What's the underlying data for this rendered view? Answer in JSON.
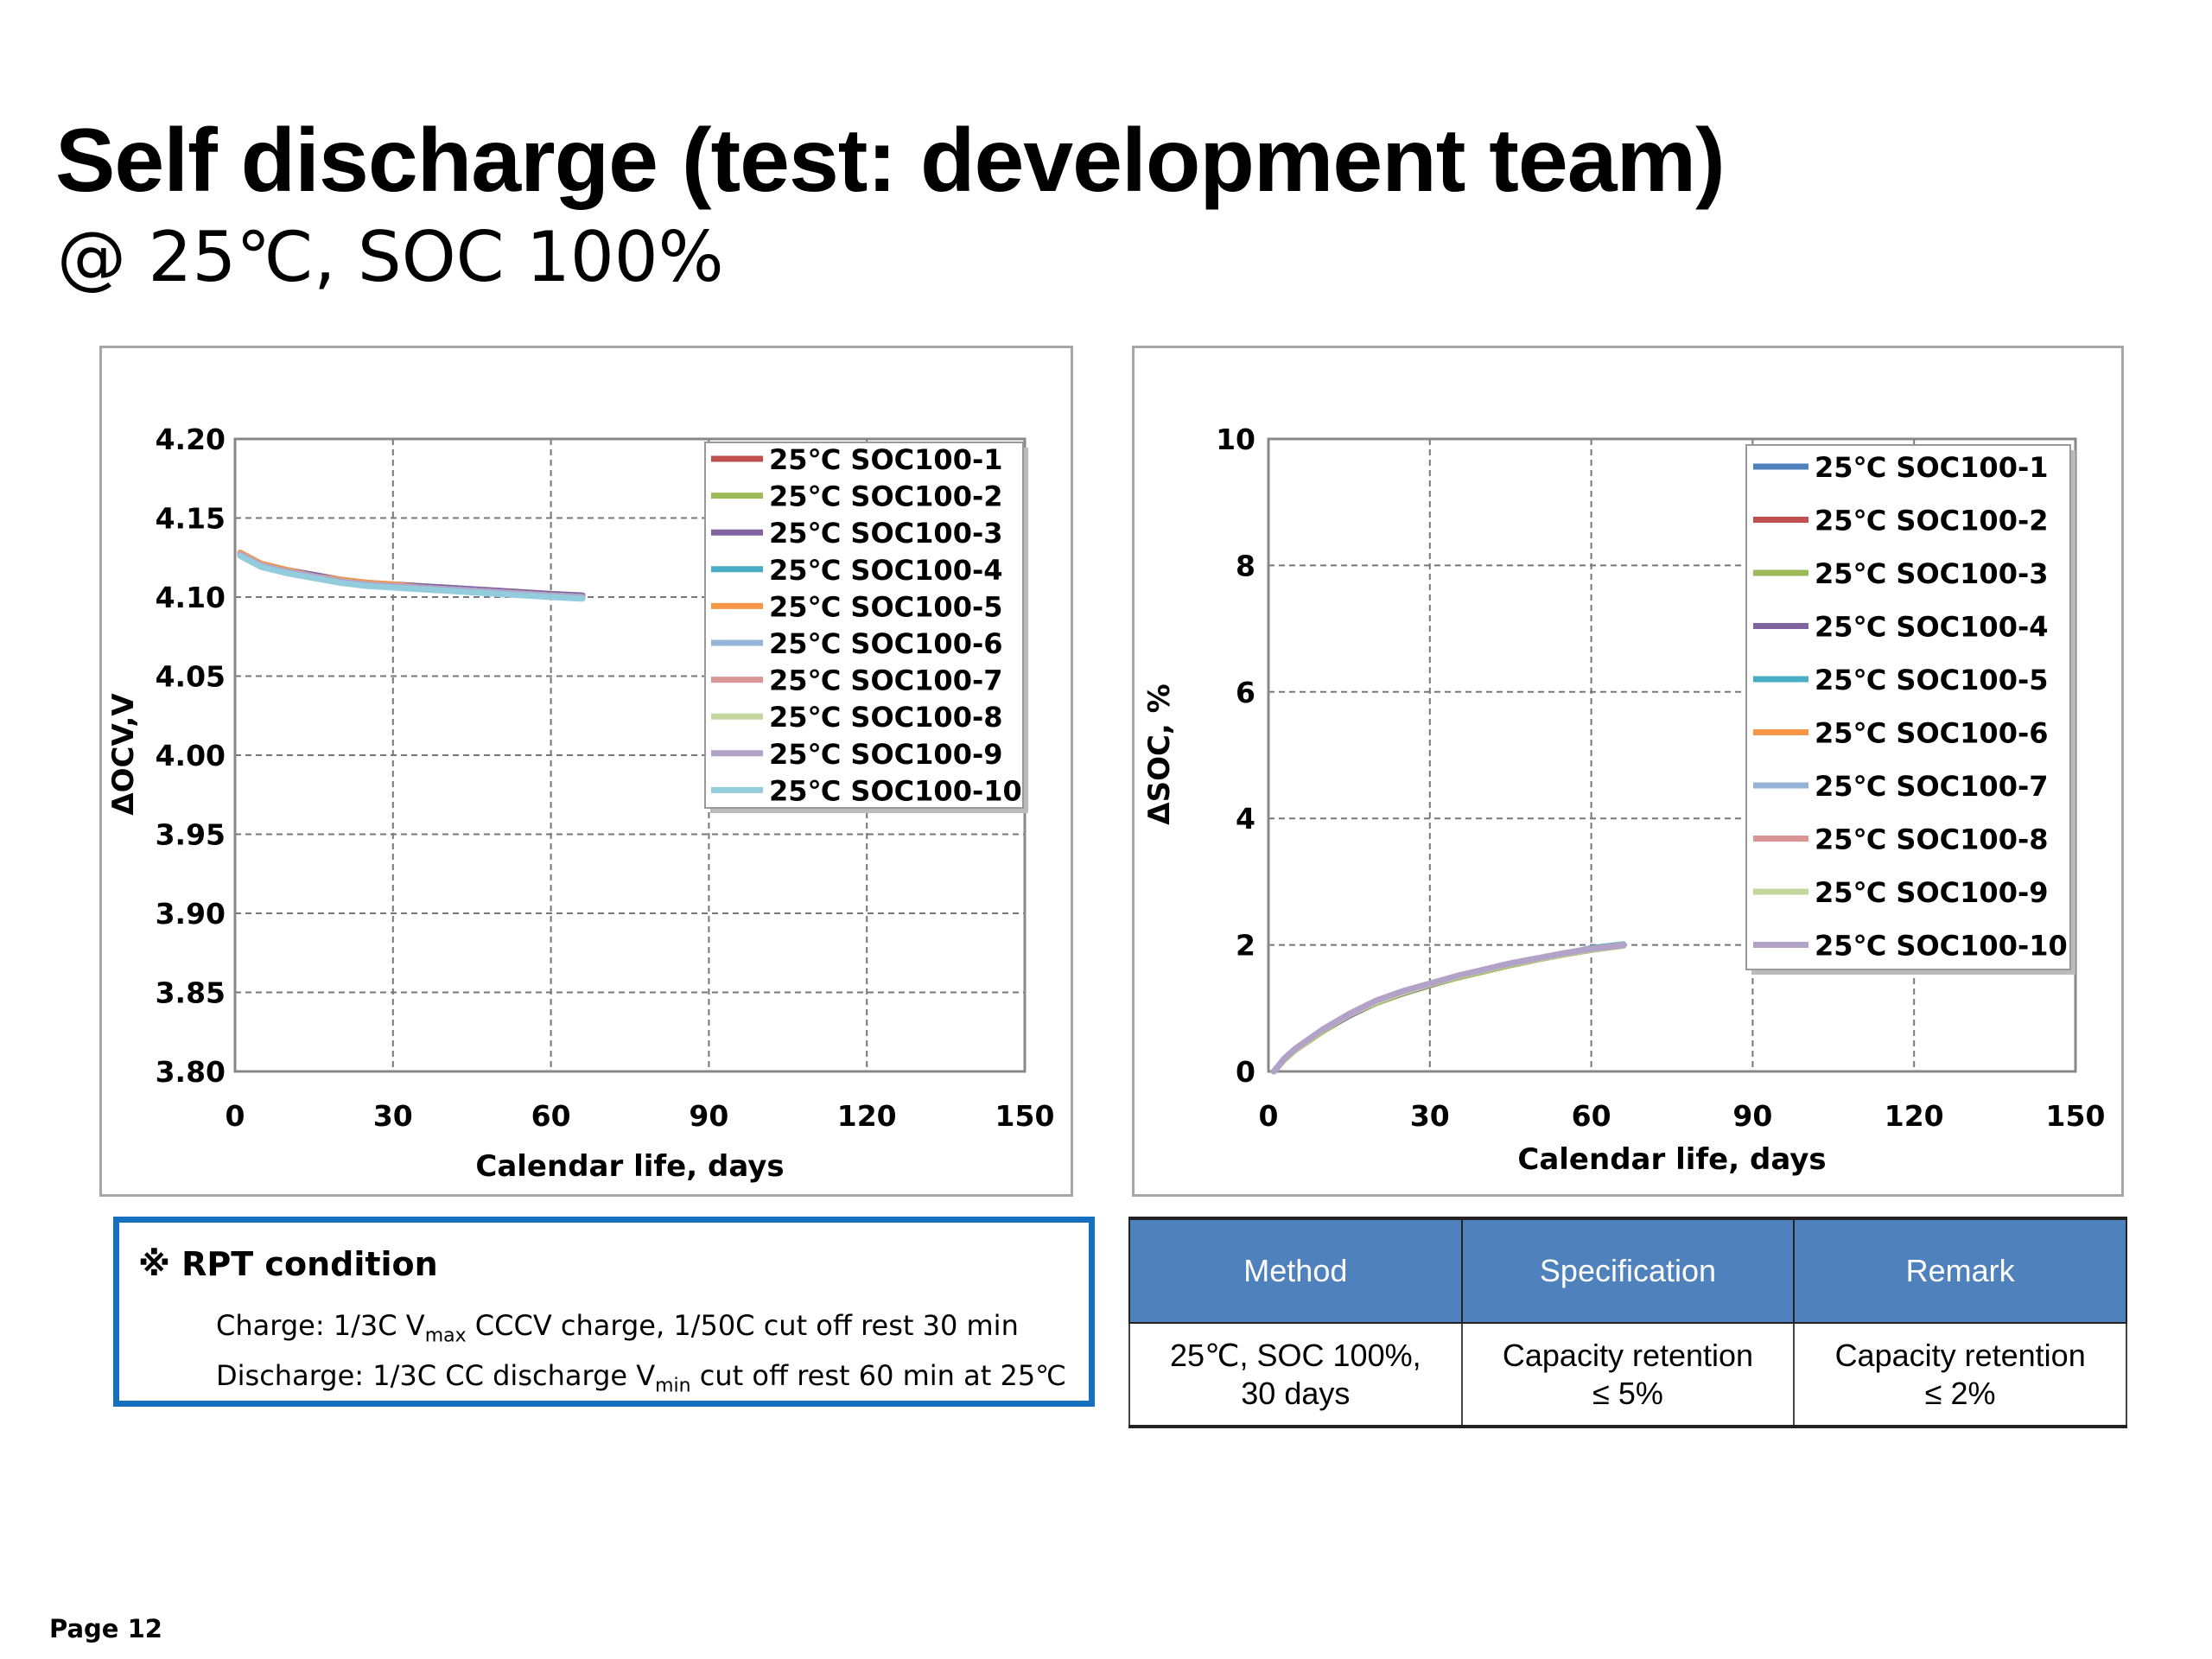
{
  "header": {
    "title": "Self discharge (test: development team)",
    "subtitle": "@ 25℃, SOC 100%"
  },
  "chart_data": [
    {
      "type": "line",
      "xlabel": "Calendar life, days",
      "ylabel": "ΔOCV,V",
      "xlim": [
        0,
        150
      ],
      "ylim": [
        3.8,
        4.2
      ],
      "xticks": [
        "0",
        "30",
        "60",
        "90",
        "120",
        "150"
      ],
      "yticks": [
        "3.80",
        "3.85",
        "3.90",
        "3.95",
        "4.00",
        "4.05",
        "4.10",
        "4.15",
        "4.20"
      ],
      "grid": true,
      "legend_placement": "top-right",
      "x": [
        1,
        5,
        10,
        15,
        20,
        25,
        30,
        35,
        40,
        45,
        50,
        55,
        60,
        66
      ],
      "series": [
        {
          "name": "25℃ SOC100-1",
          "color": "#c0504d",
          "values": [
            4.127,
            4.12,
            4.116,
            4.113,
            4.11,
            4.109,
            4.107,
            4.106,
            4.105,
            4.104,
            4.103,
            4.102,
            4.101,
            4.1
          ]
        },
        {
          "name": "25℃ SOC100-2",
          "color": "#9bbb59",
          "values": [
            4.127,
            4.12,
            4.116,
            4.113,
            4.11,
            4.108,
            4.107,
            4.106,
            4.105,
            4.104,
            4.103,
            4.102,
            4.101,
            4.1
          ]
        },
        {
          "name": "25℃ SOC100-3",
          "color": "#8064a2",
          "values": [
            4.128,
            4.121,
            4.117,
            4.114,
            4.111,
            4.109,
            4.108,
            4.107,
            4.106,
            4.105,
            4.104,
            4.103,
            4.102,
            4.101
          ]
        },
        {
          "name": "25℃ SOC100-4",
          "color": "#4bacc6",
          "values": [
            4.127,
            4.12,
            4.116,
            4.113,
            4.11,
            4.108,
            4.107,
            4.106,
            4.105,
            4.104,
            4.103,
            4.102,
            4.101,
            4.1
          ]
        },
        {
          "name": "25℃ SOC100-5",
          "color": "#f79646",
          "values": [
            4.128,
            4.121,
            4.117,
            4.113,
            4.111,
            4.109,
            4.108,
            4.106,
            4.105,
            4.104,
            4.103,
            4.102,
            4.101,
            4.1
          ]
        },
        {
          "name": "25℃ SOC100-6",
          "color": "#95b3d7",
          "values": [
            4.127,
            4.12,
            4.116,
            4.113,
            4.11,
            4.108,
            4.107,
            4.106,
            4.105,
            4.104,
            4.103,
            4.102,
            4.101,
            4.1
          ]
        },
        {
          "name": "25℃ SOC100-7",
          "color": "#d99694",
          "values": [
            4.127,
            4.12,
            4.116,
            4.113,
            4.11,
            4.108,
            4.107,
            4.106,
            4.105,
            4.104,
            4.103,
            4.102,
            4.101,
            4.1
          ]
        },
        {
          "name": "25℃ SOC100-8",
          "color": "#c3d69b",
          "values": [
            4.127,
            4.12,
            4.116,
            4.113,
            4.11,
            4.108,
            4.107,
            4.106,
            4.105,
            4.104,
            4.103,
            4.102,
            4.101,
            4.1
          ]
        },
        {
          "name": "25℃ SOC100-9",
          "color": "#b3a2c7",
          "values": [
            4.127,
            4.12,
            4.116,
            4.113,
            4.11,
            4.108,
            4.107,
            4.106,
            4.105,
            4.104,
            4.103,
            4.102,
            4.101,
            4.1
          ]
        },
        {
          "name": "25℃ SOC100-10",
          "color": "#93cddd",
          "values": [
            4.126,
            4.119,
            4.115,
            4.112,
            4.109,
            4.107,
            4.106,
            4.105,
            4.104,
            4.103,
            4.102,
            4.101,
            4.1,
            4.099
          ]
        }
      ]
    },
    {
      "type": "line",
      "xlabel": "Calendar life, days",
      "ylabel": "ΔSOC, %",
      "xlim": [
        0,
        150
      ],
      "ylim": [
        0,
        10
      ],
      "xticks": [
        "0",
        "30",
        "60",
        "90",
        "120",
        "150"
      ],
      "yticks": [
        "0",
        "2",
        "4",
        "6",
        "8",
        "10"
      ],
      "grid": true,
      "legend_placement": "top-right",
      "x": [
        1,
        3,
        5,
        10,
        15,
        20,
        25,
        30,
        35,
        40,
        45,
        50,
        55,
        60,
        66
      ],
      "series": [
        {
          "name": "25℃ SOC100-1",
          "color": "#4f81bd",
          "values": [
            0,
            0.2,
            0.35,
            0.65,
            0.9,
            1.1,
            1.25,
            1.38,
            1.5,
            1.6,
            1.7,
            1.78,
            1.86,
            1.93,
            2.0
          ]
        },
        {
          "name": "25℃ SOC100-2",
          "color": "#c0504d",
          "values": [
            0,
            0.2,
            0.35,
            0.65,
            0.9,
            1.1,
            1.25,
            1.38,
            1.5,
            1.6,
            1.7,
            1.78,
            1.86,
            1.93,
            2.0
          ]
        },
        {
          "name": "25℃ SOC100-3",
          "color": "#9bbb59",
          "values": [
            0,
            0.19,
            0.34,
            0.63,
            0.88,
            1.08,
            1.23,
            1.36,
            1.48,
            1.58,
            1.68,
            1.77,
            1.85,
            1.92,
            1.99
          ]
        },
        {
          "name": "25℃ SOC100-4",
          "color": "#8064a2",
          "values": [
            0,
            0.2,
            0.35,
            0.65,
            0.88,
            1.1,
            1.24,
            1.37,
            1.5,
            1.6,
            1.7,
            1.78,
            1.86,
            1.93,
            2.0
          ]
        },
        {
          "name": "25℃ SOC100-5",
          "color": "#4bacc6",
          "values": [
            0,
            0.2,
            0.35,
            0.65,
            0.9,
            1.1,
            1.25,
            1.38,
            1.5,
            1.6,
            1.7,
            1.78,
            1.86,
            1.95,
            2.01
          ]
        },
        {
          "name": "25℃ SOC100-6",
          "color": "#f79646",
          "values": [
            0,
            0.2,
            0.35,
            0.65,
            0.9,
            1.1,
            1.25,
            1.38,
            1.5,
            1.6,
            1.7,
            1.78,
            1.86,
            1.93,
            2.0
          ]
        },
        {
          "name": "25℃ SOC100-7",
          "color": "#95b3d7",
          "values": [
            0,
            0.2,
            0.35,
            0.65,
            0.9,
            1.1,
            1.25,
            1.38,
            1.5,
            1.6,
            1.7,
            1.78,
            1.86,
            1.93,
            2.0
          ]
        },
        {
          "name": "25℃ SOC100-8",
          "color": "#d99694",
          "values": [
            0,
            0.2,
            0.35,
            0.65,
            0.9,
            1.1,
            1.25,
            1.38,
            1.5,
            1.6,
            1.7,
            1.78,
            1.86,
            1.93,
            2.0
          ]
        },
        {
          "name": "25℃ SOC100-9",
          "color": "#c3d69b",
          "values": [
            0,
            0.2,
            0.35,
            0.65,
            0.9,
            1.1,
            1.25,
            1.38,
            1.5,
            1.6,
            1.7,
            1.78,
            1.86,
            1.93,
            2.0
          ]
        },
        {
          "name": "25℃ SOC100-10",
          "color": "#b3a2c7",
          "values": [
            0,
            0.21,
            0.36,
            0.66,
            0.91,
            1.12,
            1.27,
            1.39,
            1.51,
            1.61,
            1.71,
            1.79,
            1.87,
            1.94,
            2.0
          ]
        }
      ]
    }
  ],
  "rpt": {
    "heading": "※ RPT condition",
    "charge_pre": "Charge: 1/3C V",
    "charge_sub": "max",
    "charge_post": " CCCV charge, 1/50C cut off rest 30 min",
    "discharge_pre": "Discharge: 1/3C CC discharge V",
    "discharge_sub": "min",
    "discharge_post": " cut off  rest 60 min at 25℃"
  },
  "spec_table": {
    "headers": [
      "Method",
      "Specification",
      "Remark"
    ],
    "row": [
      [
        "25℃, SOC 100%,",
        "30 days"
      ],
      [
        "Capacity retention",
        "≤ 5%"
      ],
      [
        "Capacity retention",
        "≤ 2%"
      ]
    ],
    "header_color": "#4f81bd"
  },
  "footer": {
    "page": "Page 12"
  }
}
